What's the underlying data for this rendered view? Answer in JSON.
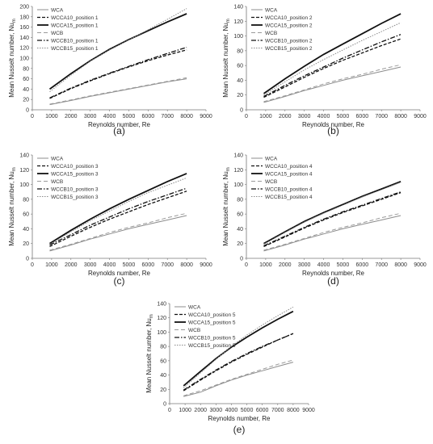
{
  "chart_data": [
    {
      "type": "line",
      "panel_label": "(a)",
      "xlabel": "Reynolds number, Re",
      "ylabel": "Mean Nusselt number, Nu",
      "ylabel_sub": "m",
      "xlim": [
        0,
        9000
      ],
      "ylim": [
        0,
        200
      ],
      "xticks": [
        0,
        1000,
        2000,
        3000,
        4000,
        5000,
        6000,
        7000,
        8000,
        9000
      ],
      "yticks": [
        0,
        20,
        40,
        60,
        80,
        100,
        120,
        140,
        160,
        180,
        200
      ],
      "grid": false,
      "legend_position": "top-left",
      "x": [
        900,
        2000,
        3000,
        4000,
        5000,
        6000,
        7000,
        8000
      ],
      "series": [
        {
          "name": "WCA",
          "style": "solid-thin-gray",
          "values": [
            10,
            18,
            26,
            33,
            40,
            47,
            54,
            60
          ]
        },
        {
          "name": "WCCA10_position 1",
          "style": "dashed-black",
          "values": [
            22,
            41,
            56,
            70,
            83,
            95,
            106,
            116
          ]
        },
        {
          "name": "WCCA15_position 1",
          "style": "solid-thick-black",
          "values": [
            40,
            70,
            95,
            117,
            136,
            153,
            170,
            186
          ]
        },
        {
          "name": "WCB",
          "style": "dashed-gray",
          "values": [
            11,
            19,
            27,
            34,
            41,
            48,
            55,
            62
          ]
        },
        {
          "name": "WCCB10_position 1",
          "style": "dashdot-black",
          "values": [
            23,
            42,
            57,
            71,
            84,
            97,
            109,
            121
          ]
        },
        {
          "name": "WCCB15_position 1",
          "style": "dotted-gray",
          "values": [
            35,
            67,
            94,
            116,
            135,
            155,
            175,
            196
          ]
        }
      ]
    },
    {
      "type": "line",
      "panel_label": "(b)",
      "xlabel": "Reynolds number, Re",
      "ylabel": "Mean Nusselt number, Nu",
      "ylabel_sub": "m",
      "xlim": [
        0,
        9000
      ],
      "ylim": [
        0,
        140
      ],
      "xticks": [
        0,
        1000,
        2000,
        3000,
        4000,
        5000,
        6000,
        7000,
        8000,
        9000
      ],
      "yticks": [
        0,
        20,
        40,
        60,
        80,
        100,
        120,
        140
      ],
      "grid": false,
      "legend_position": "top-left",
      "x": [
        900,
        2000,
        3000,
        4000,
        5000,
        6000,
        7000,
        8000
      ],
      "series": [
        {
          "name": "WCA",
          "style": "solid-thin-gray",
          "values": [
            10,
            18,
            26,
            33,
            40,
            46,
            52,
            58
          ]
        },
        {
          "name": "WCCA10_position 2",
          "style": "dashed-black",
          "values": [
            17,
            31,
            44,
            56,
            67,
            77,
            87,
            96
          ]
        },
        {
          "name": "WCCA15_position 2",
          "style": "solid-thick-black",
          "values": [
            22,
            42,
            59,
            75,
            89,
            103,
            117,
            130
          ]
        },
        {
          "name": "WCB",
          "style": "dashed-gray",
          "values": [
            11,
            19,
            27,
            35,
            42,
            48,
            55,
            61
          ]
        },
        {
          "name": "WCCB10_position 2",
          "style": "dashdot-black",
          "values": [
            18,
            33,
            46,
            58,
            70,
            81,
            92,
            102
          ]
        },
        {
          "name": "WCCB15_position 2",
          "style": "dotted-gray",
          "values": [
            20,
            38,
            54,
            68,
            81,
            94,
            106,
            118
          ]
        }
      ]
    },
    {
      "type": "line",
      "panel_label": "(c)",
      "xlabel": "Reynolds number, Re",
      "ylabel": "Mean Nusselt number, Nu",
      "ylabel_sub": "m",
      "xlim": [
        0,
        9000
      ],
      "ylim": [
        0,
        140
      ],
      "xticks": [
        0,
        1000,
        2000,
        3000,
        4000,
        5000,
        6000,
        7000,
        8000,
        9000
      ],
      "yticks": [
        0,
        20,
        40,
        60,
        80,
        100,
        120,
        140
      ],
      "grid": false,
      "legend_position": "top-left",
      "x": [
        900,
        2000,
        3000,
        4000,
        5000,
        6000,
        7000,
        8000
      ],
      "series": [
        {
          "name": "WCA",
          "style": "solid-thin-gray",
          "values": [
            10,
            18,
            26,
            33,
            40,
            46,
            52,
            58
          ]
        },
        {
          "name": "WCCA10_position 3",
          "style": "dashed-black",
          "values": [
            16,
            30,
            42,
            53,
            63,
            73,
            82,
            91
          ]
        },
        {
          "name": "WCCA15_position 3",
          "style": "solid-thick-black",
          "values": [
            20,
            38,
            53,
            67,
            80,
            92,
            104,
            115
          ]
        },
        {
          "name": "WCB",
          "style": "dashed-gray",
          "values": [
            11,
            19,
            27,
            35,
            42,
            48,
            55,
            61
          ]
        },
        {
          "name": "WCCB10_position 3",
          "style": "dashdot-black",
          "values": [
            18,
            32,
            45,
            56,
            67,
            77,
            86,
            95
          ]
        },
        {
          "name": "WCCB15_position 3",
          "style": "dotted-gray",
          "values": [
            19,
            36,
            51,
            64,
            77,
            89,
            99,
            109
          ]
        }
      ]
    },
    {
      "type": "line",
      "panel_label": "(d)",
      "xlabel": "Reynolds number, Re",
      "ylabel": "Mean Nusselt number, Nu",
      "ylabel_sub": "m",
      "xlim": [
        0,
        9000
      ],
      "ylim": [
        0,
        140
      ],
      "xticks": [
        0,
        1000,
        2000,
        3000,
        4000,
        5000,
        6000,
        7000,
        8000,
        9000
      ],
      "yticks": [
        0,
        20,
        40,
        60,
        80,
        100,
        120,
        140
      ],
      "grid": false,
      "legend_position": "top-left",
      "x": [
        900,
        2000,
        3000,
        4000,
        5000,
        6000,
        7000,
        8000
      ],
      "series": [
        {
          "name": "WCA",
          "style": "solid-thin-gray",
          "values": [
            10,
            18,
            26,
            33,
            40,
            46,
            52,
            58
          ]
        },
        {
          "name": "WCCA10_position 4",
          "style": "dashed-black",
          "values": [
            16,
            29,
            41,
            52,
            62,
            71,
            80,
            89
          ]
        },
        {
          "name": "WCCA15_position 4",
          "style": "solid-thick-black",
          "values": [
            20,
            36,
            50,
            62,
            73,
            84,
            94,
            104
          ]
        },
        {
          "name": "WCB",
          "style": "dashed-gray",
          "values": [
            11,
            19,
            27,
            35,
            42,
            48,
            55,
            61
          ]
        },
        {
          "name": "WCCB10_position 4",
          "style": "dashdot-black",
          "values": [
            17,
            30,
            42,
            53,
            63,
            72,
            81,
            90
          ]
        },
        {
          "name": "WCCB15_position 4",
          "style": "dotted-gray",
          "values": [
            19,
            35,
            49,
            61,
            72,
            83,
            93,
            103
          ]
        }
      ]
    },
    {
      "type": "line",
      "panel_label": "(e)",
      "xlabel": "Reynolds number, Re",
      "ylabel": "Mean Nusselt number, Nu",
      "ylabel_sub": "m",
      "xlim": [
        0,
        9000
      ],
      "ylim": [
        0,
        140
      ],
      "xticks": [
        0,
        1000,
        2000,
        3000,
        4000,
        5000,
        6000,
        7000,
        8000,
        9000
      ],
      "yticks": [
        0,
        20,
        40,
        60,
        80,
        100,
        120,
        140
      ],
      "grid": false,
      "legend_position": "top-left",
      "x": [
        900,
        2000,
        3000,
        4000,
        5000,
        6000,
        7000,
        8000
      ],
      "series": [
        {
          "name": "WCA",
          "style": "solid-thin-gray",
          "values": [
            10,
            16,
            25,
            33,
            40,
            46,
            52,
            58
          ]
        },
        {
          "name": "WCCA10_position 5",
          "style": "dashed-black",
          "values": [
            18,
            33,
            46,
            58,
            69,
            79,
            89,
            98
          ]
        },
        {
          "name": "WCCA15_position 5",
          "style": "solid-thick-black",
          "values": [
            25,
            45,
            63,
            79,
            93,
            106,
            118,
            129
          ]
        },
        {
          "name": "WCB",
          "style": "dashed-gray",
          "values": [
            11,
            18,
            26,
            34,
            41,
            48,
            55,
            61
          ]
        },
        {
          "name": "WCCB10_position 5",
          "style": "dashdot-black",
          "values": [
            19,
            34,
            47,
            59,
            70,
            80,
            89,
            98
          ]
        },
        {
          "name": "WCCB15_position 5",
          "style": "dotted-gray",
          "values": [
            22,
            43,
            62,
            80,
            96,
            110,
            123,
            135
          ]
        }
      ]
    }
  ]
}
